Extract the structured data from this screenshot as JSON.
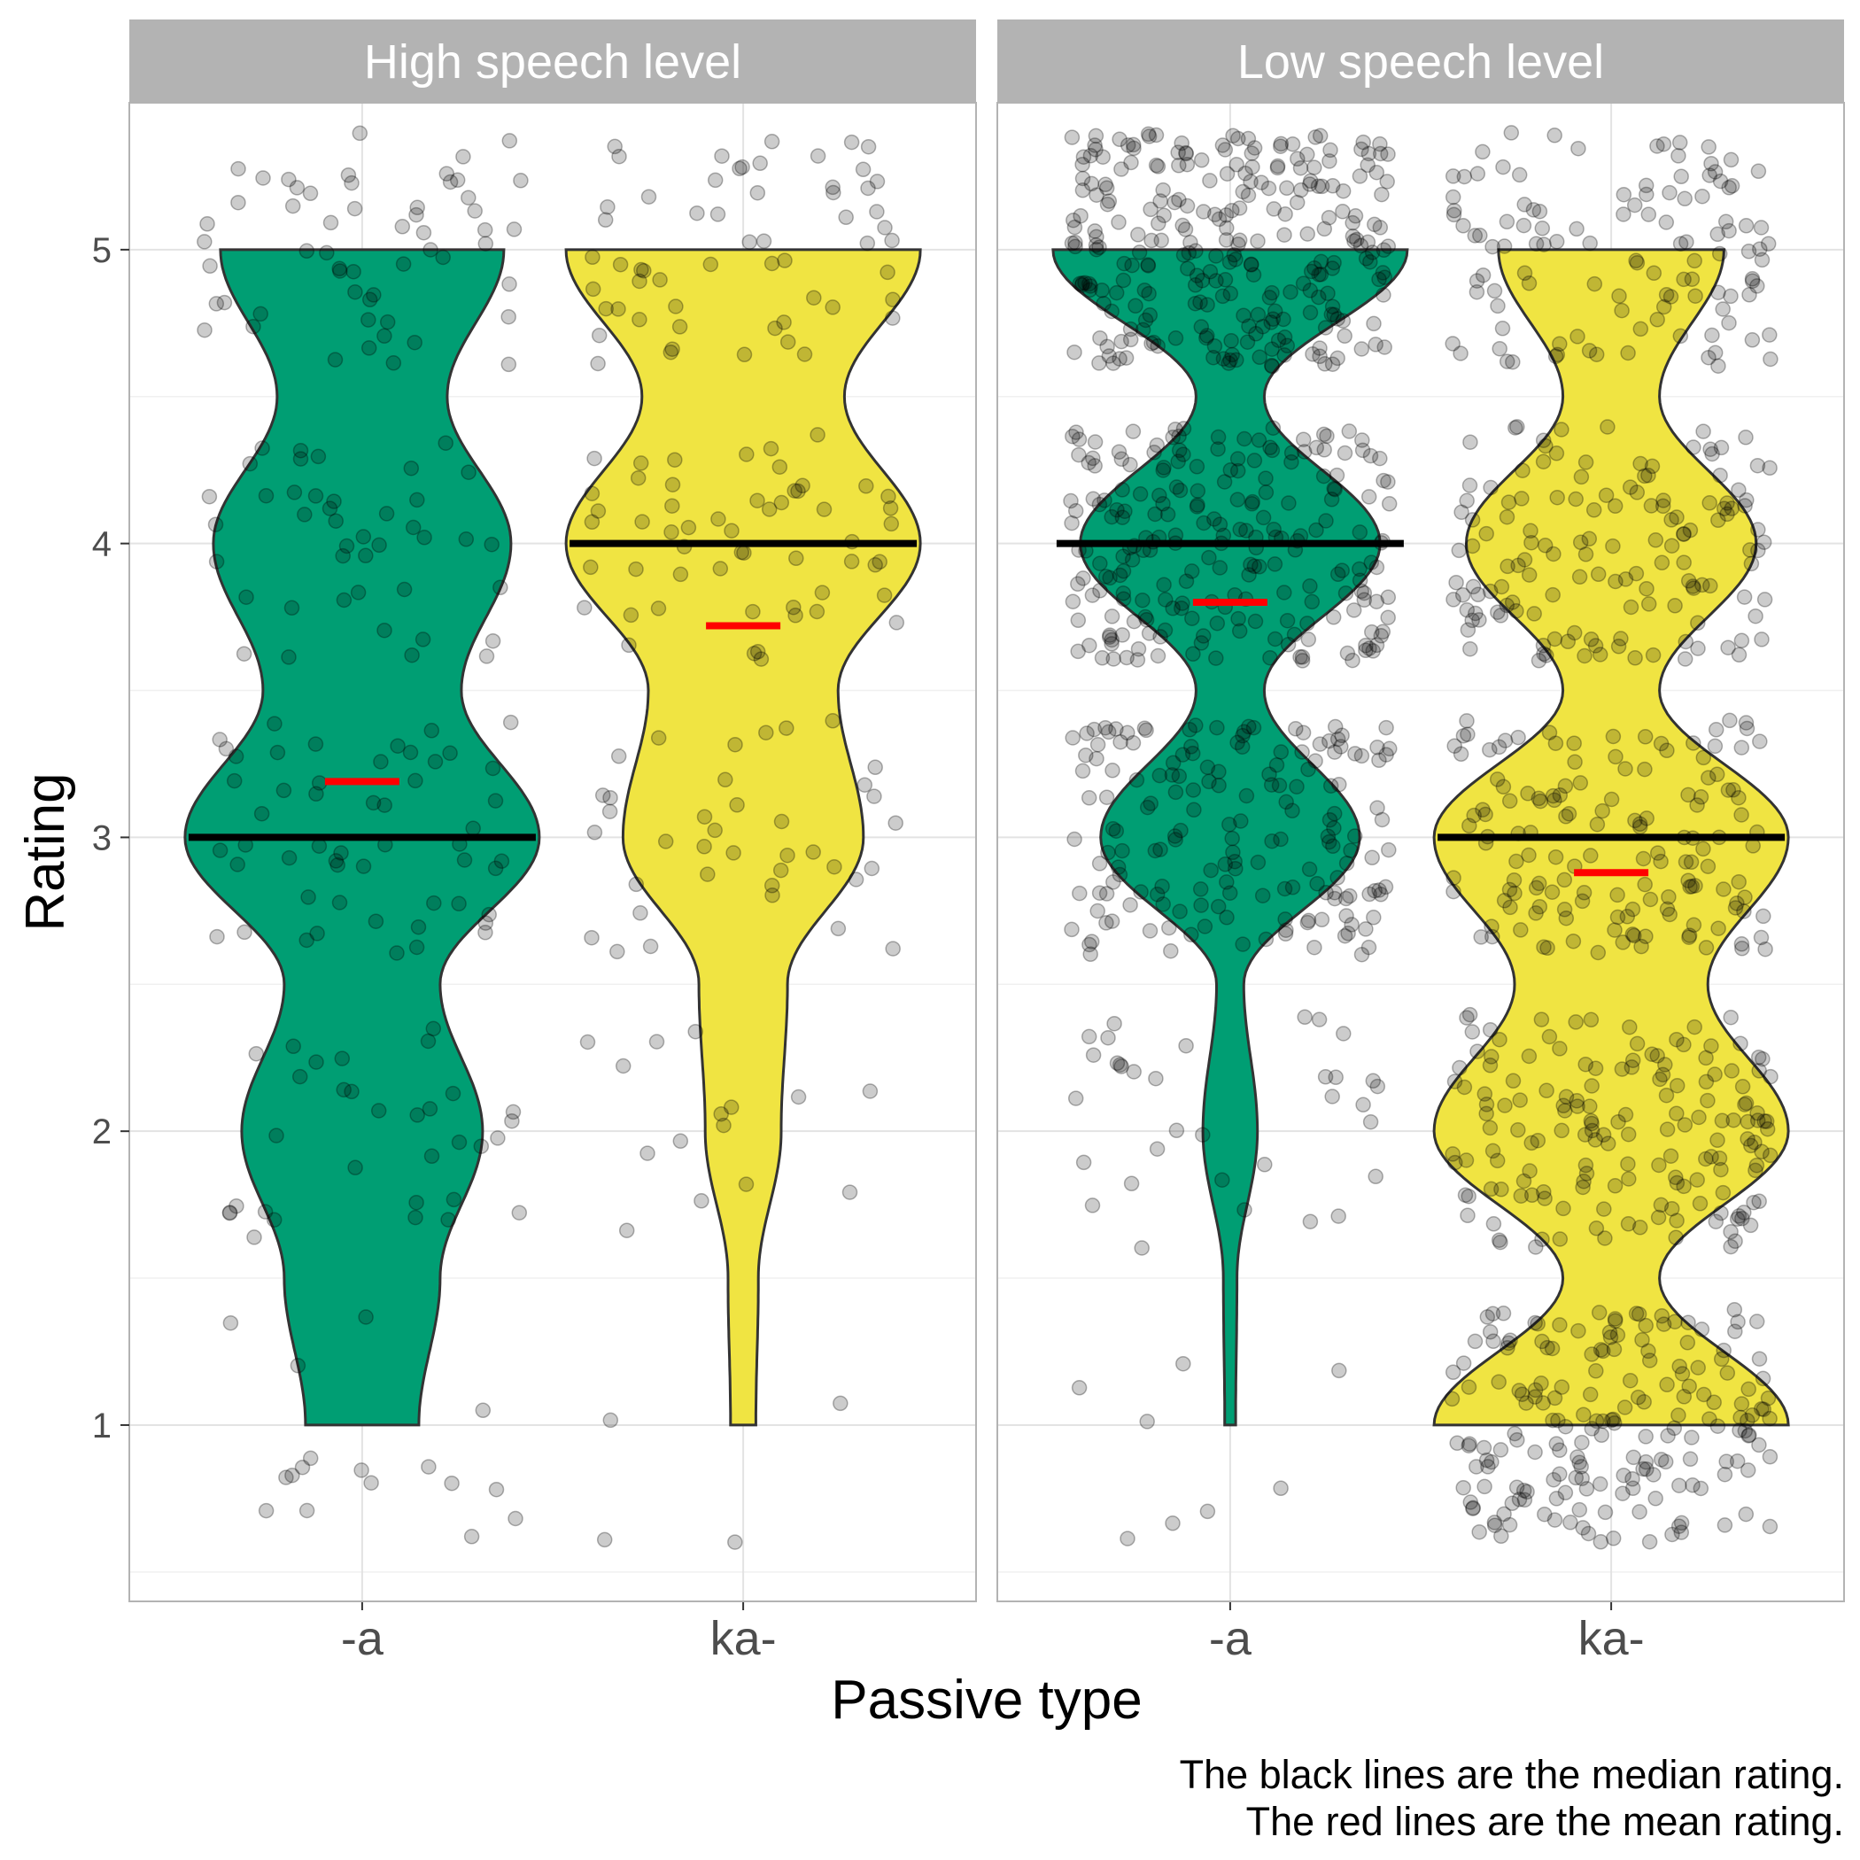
{
  "chart_data": {
    "type": "violin",
    "facet_variable": "speech level",
    "facets": [
      "High speech level",
      "Low speech level"
    ],
    "categories": [
      "-a",
      "ka-"
    ],
    "xlabel": "Passive type",
    "ylabel": "Rating",
    "y_ticks": [
      1,
      2,
      3,
      4,
      5
    ],
    "ylim": [
      0.4,
      5.5
    ],
    "grid": true,
    "caption": [
      "The black lines are the median rating.",
      "The red lines are the mean rating."
    ],
    "colors": {
      "-a": "#009E73",
      "ka-": "#F0E442",
      "median": "#000000",
      "mean": "#FF0000",
      "strip_bg": "#B3B3B3",
      "points": "#000000"
    },
    "groups": [
      {
        "facet": "High speech level",
        "category": "-a",
        "median": 3,
        "mean": 3.19,
        "n_points": 200,
        "density": {
          "5": 1.0,
          "4.5": 0.6,
          "4": 1.05,
          "3.5": 0.7,
          "3": 1.25,
          "2.5": 0.55,
          "2": 0.85,
          "1.5": 0.55,
          "1": 0.4
        }
      },
      {
        "facet": "High speech level",
        "category": "ka-",
        "median": 4,
        "mean": 3.72,
        "n_points": 170,
        "density": {
          "5": 1.4,
          "4.5": 0.8,
          "4": 1.4,
          "3.5": 0.75,
          "3": 0.95,
          "2.5": 0.35,
          "2": 0.3,
          "1.5": 0.12,
          "1": 0.1
        }
      },
      {
        "facet": "Low speech level",
        "category": "-a",
        "median": 4,
        "mean": 3.8,
        "n_points": 700,
        "density": {
          "5": 1.3,
          "4.5": 0.25,
          "4": 1.1,
          "3.5": 0.25,
          "3": 0.95,
          "2.5": 0.1,
          "2": 0.2,
          "1.5": 0.05,
          "1": 0.04
        }
      },
      {
        "facet": "Low speech level",
        "category": "ka-",
        "median": 3,
        "mean": 2.88,
        "n_points": 750,
        "density": {
          "5": 0.35,
          "4.5": 0.15,
          "4": 0.45,
          "3.5": 0.15,
          "3": 0.55,
          "2.5": 0.3,
          "2": 0.55,
          "1.5": 0.15,
          "1": 0.55
        }
      }
    ]
  }
}
